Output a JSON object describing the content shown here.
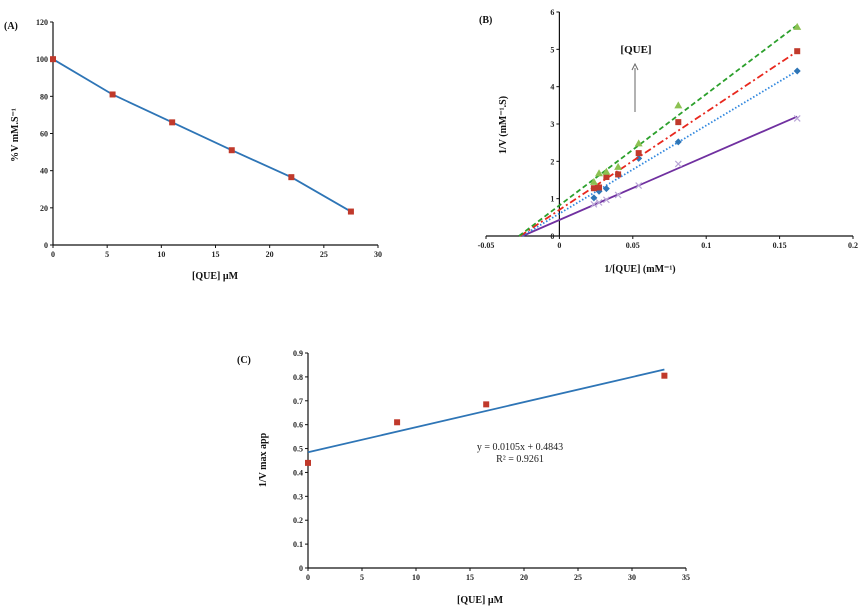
{
  "chart_data": [
    {
      "panel": "(A)",
      "type": "line",
      "xlabel": "[QUE] µM",
      "ylabel": "%V mM.S⁻¹",
      "xlim": [
        0,
        30
      ],
      "ylim": [
        0,
        120
      ],
      "xticks": [
        0,
        5,
        10,
        15,
        20,
        25,
        30
      ],
      "yticks": [
        0,
        20,
        40,
        60,
        80,
        100,
        120
      ],
      "grid": false,
      "line_color": "#2e75b6",
      "marker_color": "#c0392b",
      "x": [
        0,
        5.5,
        11,
        16.5,
        22,
        27.5
      ],
      "y": [
        100,
        81,
        66,
        51,
        36.5,
        18
      ]
    },
    {
      "panel": "(B)",
      "type": "scatter",
      "xlabel": "1/[QUE] (mM⁻¹)",
      "ylabel": "1/V (mM⁻¹.S)",
      "annotation": "[QUE]",
      "xlim": [
        -0.05,
        0.2
      ],
      "ylim": [
        0,
        6
      ],
      "xticks": [
        -0.05,
        0,
        0.05,
        0.1,
        0.15,
        0.2
      ],
      "yticks": [
        0,
        1,
        2,
        3,
        4,
        5,
        6
      ],
      "grid": false,
      "x": [
        0.0235,
        0.027,
        0.032,
        0.04,
        0.054,
        0.081,
        0.162
      ],
      "series": [
        {
          "marker": "cross",
          "color": "#b9a6d6",
          "line_color": "#7030a0",
          "dash": "",
          "y": [
            0.85,
            0.9,
            0.97,
            1.1,
            1.35,
            1.93,
            3.15
          ],
          "fit": {
            "slope": 17.1,
            "intercept": 0.43
          }
        },
        {
          "marker": "diamond",
          "color": "#2e75b6",
          "line_color": "#2e86de",
          "dash": "1.5 2",
          "y": [
            1.02,
            1.2,
            1.27,
            1.65,
            2.08,
            2.52,
            4.42
          ],
          "fit": {
            "slope": 23.6,
            "intercept": 0.6
          }
        },
        {
          "marker": "square",
          "color": "#c0392b",
          "line_color": "#e8281e",
          "dash": "7 3 2 3",
          "y": [
            1.28,
            1.3,
            1.58,
            1.65,
            2.22,
            3.05,
            4.95
          ],
          "fit": {
            "slope": 26.2,
            "intercept": 0.7
          }
        },
        {
          "marker": "triangle",
          "color": "#8cc152",
          "line_color": "#2ca02c",
          "dash": "5 3",
          "y": [
            1.45,
            1.68,
            1.72,
            1.85,
            2.48,
            3.5,
            5.6
          ],
          "fit": {
            "slope": 29.8,
            "intercept": 0.82
          }
        }
      ]
    },
    {
      "panel": "(C)",
      "type": "scatter",
      "xlabel": "[QUE] µM",
      "ylabel": "1/V max app",
      "xlim": [
        0,
        35
      ],
      "ylim": [
        0,
        0.9
      ],
      "xticks": [
        0,
        5,
        10,
        15,
        20,
        25,
        30,
        35
      ],
      "yticks": [
        0,
        0.1,
        0.2,
        0.3,
        0.4,
        0.5,
        0.6,
        0.7,
        0.8,
        0.9
      ],
      "grid": false,
      "marker_color": "#c0392b",
      "line_color": "#2e75b6",
      "x": [
        0,
        8.25,
        16.5,
        33
      ],
      "y": [
        0.44,
        0.61,
        0.685,
        0.805
      ],
      "trendline": {
        "slope": 0.0105,
        "intercept": 0.4843,
        "x_end": 33
      },
      "equation": "y = 0.0105x + 0.4843",
      "r_squared": "R² = 0.9261"
    }
  ]
}
